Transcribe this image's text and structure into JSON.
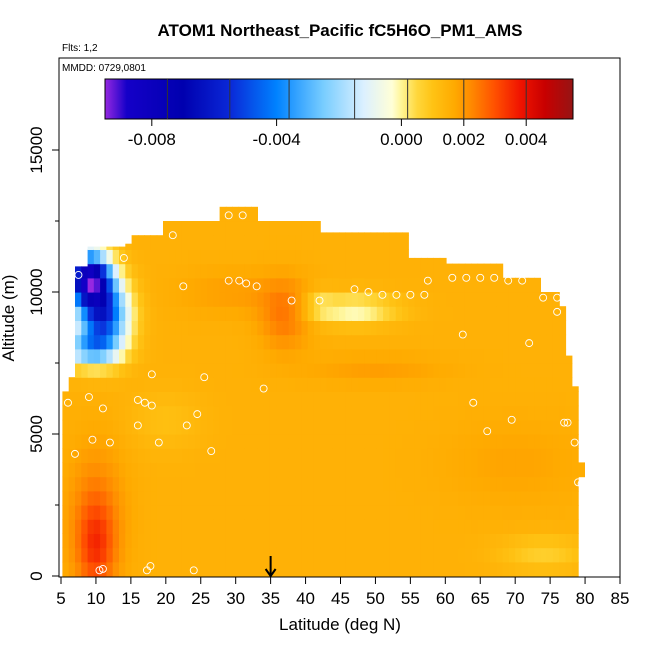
{
  "chart_data": {
    "type": "heatmap",
    "title": "ATOM1 Northeast_Pacific fC5H6O_PM1_AMS",
    "subtitle_flights": "Flts: 1,2",
    "subtitle_dates": "MMDD: 0729,0801",
    "xlabel": "Latitude (deg N)",
    "ylabel": "Altitude (m)",
    "xlim": [
      5,
      85
    ],
    "ylim": [
      0,
      17500
    ],
    "x_ticks": [
      "5",
      "10",
      "15",
      "20",
      "25",
      "30",
      "35",
      "40",
      "45",
      "50",
      "55",
      "60",
      "65",
      "70",
      "75",
      "80",
      "85"
    ],
    "y_ticks": [
      "0",
      "5000",
      "10000",
      "15000"
    ],
    "colorbar": {
      "range": [
        -0.0095,
        0.0055
      ],
      "tick_values": [
        -0.008,
        -0.004,
        0.0,
        0.002,
        0.004
      ],
      "tick_labels": [
        "-0.008",
        "-0.004",
        "0.000",
        "0.002",
        "0.004"
      ]
    },
    "marker_latitude": 35,
    "sample_points": [
      [
        10.5,
        200
      ],
      [
        11,
        250
      ],
      [
        17.3,
        200
      ],
      [
        17.8,
        350
      ],
      [
        24,
        200
      ],
      [
        6,
        6100
      ],
      [
        9,
        6300
      ],
      [
        11,
        5900
      ],
      [
        9.5,
        4800
      ],
      [
        12,
        4700
      ],
      [
        7,
        4300
      ],
      [
        16,
        6200
      ],
      [
        17,
        6100
      ],
      [
        18,
        6000
      ],
      [
        16,
        5300
      ],
      [
        19,
        4700
      ],
      [
        18,
        7100
      ],
      [
        25.5,
        7000
      ],
      [
        23,
        5300
      ],
      [
        24.5,
        5700
      ],
      [
        26.5,
        4400
      ],
      [
        34,
        6600
      ],
      [
        14,
        11200
      ],
      [
        21,
        12000
      ],
      [
        22.5,
        10200
      ],
      [
        29,
        12700
      ],
      [
        31,
        12700
      ],
      [
        29,
        10400
      ],
      [
        30.5,
        10400
      ],
      [
        31.5,
        10300
      ],
      [
        33,
        10200
      ],
      [
        38,
        9700
      ],
      [
        42,
        9700
      ],
      [
        47,
        10100
      ],
      [
        49,
        10000
      ],
      [
        51,
        9900
      ],
      [
        53,
        9900
      ],
      [
        55,
        9900
      ],
      [
        57,
        9900
      ],
      [
        57.5,
        10400
      ],
      [
        61,
        10500
      ],
      [
        63,
        10500
      ],
      [
        65,
        10500
      ],
      [
        67,
        10500
      ],
      [
        69,
        10400
      ],
      [
        71,
        10400
      ],
      [
        74,
        9800
      ],
      [
        76,
        9800
      ],
      [
        76,
        9300
      ],
      [
        62.5,
        8500
      ],
      [
        72,
        8200
      ],
      [
        64,
        6100
      ],
      [
        66,
        5100
      ],
      [
        69.5,
        5500
      ],
      [
        77,
        5400
      ],
      [
        77.5,
        5400
      ],
      [
        78.5,
        4700
      ],
      [
        79,
        3300
      ],
      [
        79.5,
        3250
      ],
      [
        7.5,
        10600
      ]
    ]
  }
}
